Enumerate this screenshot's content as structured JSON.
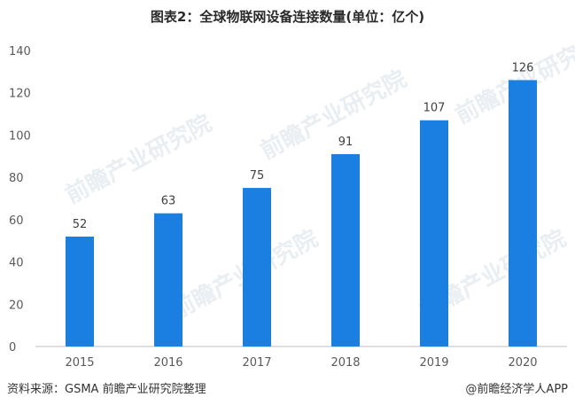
{
  "chart_data": {
    "type": "bar",
    "title": "图表2：全球物联网设备连接数量(单位：亿个)",
    "categories": [
      "2015",
      "2016",
      "2017",
      "2018",
      "2019",
      "2020"
    ],
    "values": [
      52,
      63,
      75,
      91,
      107,
      126
    ],
    "yticks": [
      0,
      20,
      40,
      60,
      80,
      100,
      120,
      140
    ],
    "ylim": [
      0,
      140
    ],
    "grid": false,
    "bar_color": "#1a7fe0",
    "axis_color": "#bfbfbf",
    "tick_text_color": "#595959"
  },
  "source": "资料来源：GSMA 前瞻产业研究院整理",
  "credit": "@前瞻经济学人APP",
  "watermark": "前瞻产业研究院"
}
